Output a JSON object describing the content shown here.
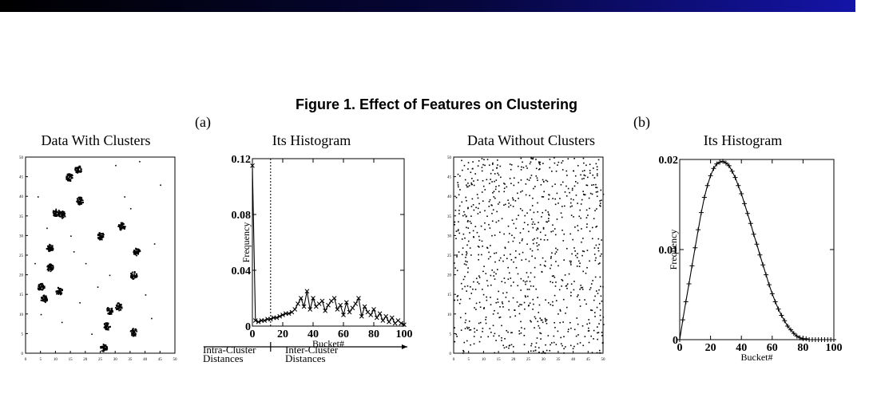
{
  "figure": {
    "title": "Figure 1. Effect of Features on Clustering",
    "label_a": "(a)",
    "label_b": "(b)",
    "accent_colors": [
      "#000000",
      "#1414a8"
    ]
  },
  "chart_data": [
    {
      "id": "scatter_clusters",
      "type": "scatter",
      "title": "Data With Clusters",
      "xlim": [
        0,
        50
      ],
      "ylim": [
        0,
        50
      ],
      "xticks": [
        0,
        5,
        10,
        15,
        20,
        25,
        30,
        35,
        40,
        45,
        50
      ],
      "yticks": [
        0,
        5,
        10,
        15,
        20,
        25,
        30,
        35,
        40,
        45,
        50
      ],
      "cluster_centers": [
        [
          17.5,
          47
        ],
        [
          14.5,
          45
        ],
        [
          18,
          39
        ],
        [
          10,
          36
        ],
        [
          12,
          35.5
        ],
        [
          25,
          30
        ],
        [
          32,
          32.5
        ],
        [
          8,
          27
        ],
        [
          37,
          26
        ],
        [
          8,
          22
        ],
        [
          36,
          20
        ],
        [
          5,
          17
        ],
        [
          6,
          14
        ],
        [
          11,
          16
        ],
        [
          31,
          12
        ],
        [
          28,
          11
        ],
        [
          27,
          7
        ],
        [
          36,
          5.5
        ],
        [
          26,
          1.5
        ]
      ],
      "scatter_points": [
        [
          4,
          40
        ],
        [
          7,
          32
        ],
        [
          3,
          23
        ],
        [
          5,
          10
        ],
        [
          12,
          8
        ],
        [
          18,
          13
        ],
        [
          22,
          5
        ],
        [
          40,
          15
        ],
        [
          45,
          43
        ],
        [
          43,
          28
        ],
        [
          42,
          9
        ],
        [
          20,
          23
        ],
        [
          28,
          20
        ],
        [
          15,
          30
        ],
        [
          35,
          37
        ],
        [
          30,
          48
        ],
        [
          38,
          49
        ],
        [
          16,
          26
        ],
        [
          24,
          17
        ],
        [
          33,
          40
        ]
      ]
    },
    {
      "id": "hist_clusters",
      "type": "line",
      "title": "Its Histogram",
      "xlabel": "Bucket#",
      "ylabel": "Frequency",
      "xlim": [
        0,
        100
      ],
      "ylim": [
        0,
        0.12
      ],
      "xticks": [
        "0",
        "20",
        "40",
        "60",
        "80",
        "100"
      ],
      "yticks": [
        "0",
        "0.04",
        "0.08",
        "0.12"
      ],
      "threshold_x": 12,
      "annotations": [
        "Intra-Cluster",
        "Distances",
        "Inter-Cluster",
        "Distances"
      ],
      "x": [
        0,
        2,
        4,
        6,
        8,
        10,
        12,
        14,
        16,
        18,
        20,
        22,
        24,
        26,
        28,
        30,
        32,
        34,
        36,
        38,
        40,
        42,
        44,
        46,
        48,
        50,
        52,
        54,
        56,
        58,
        60,
        62,
        64,
        66,
        68,
        70,
        72,
        74,
        76,
        78,
        80,
        82,
        84,
        86,
        88,
        90,
        92,
        94,
        96,
        98,
        100
      ],
      "y": [
        0.115,
        0.004,
        0.003,
        0.004,
        0.004,
        0.005,
        0.005,
        0.006,
        0.006,
        0.007,
        0.008,
        0.009,
        0.009,
        0.01,
        0.012,
        0.016,
        0.02,
        0.014,
        0.025,
        0.012,
        0.02,
        0.014,
        0.016,
        0.018,
        0.011,
        0.015,
        0.018,
        0.02,
        0.012,
        0.015,
        0.008,
        0.017,
        0.01,
        0.013,
        0.016,
        0.02,
        0.007,
        0.014,
        0.01,
        0.008,
        0.012,
        0.006,
        0.009,
        0.004,
        0.007,
        0.003,
        0.006,
        0.002,
        0.004,
        0.002,
        0.001
      ]
    },
    {
      "id": "scatter_uniform",
      "type": "scatter",
      "title": "Data Without Clusters",
      "xlim": [
        0,
        50
      ],
      "ylim": [
        0,
        50
      ],
      "xticks": [
        0,
        5,
        10,
        15,
        20,
        25,
        30,
        35,
        40,
        45,
        50
      ],
      "yticks": [
        0,
        5,
        10,
        15,
        20,
        25,
        30,
        35,
        40,
        45,
        50
      ],
      "n_points": 900
    },
    {
      "id": "hist_uniform",
      "type": "line",
      "title": "Its Histogram",
      "xlabel": "Bucket#",
      "ylabel": "Frequency",
      "xlim": [
        0,
        100
      ],
      "ylim": [
        0,
        0.02
      ],
      "xticks": [
        "0",
        "20",
        "40",
        "60",
        "80",
        "100"
      ],
      "yticks": [
        "0",
        "0.01",
        "0.02"
      ],
      "x": [
        0,
        2,
        4,
        6,
        8,
        10,
        12,
        14,
        16,
        18,
        20,
        22,
        24,
        26,
        28,
        30,
        32,
        34,
        36,
        38,
        40,
        42,
        44,
        46,
        48,
        50,
        52,
        54,
        56,
        58,
        60,
        62,
        64,
        66,
        68,
        70,
        72,
        74,
        76,
        78,
        80,
        82,
        84,
        86,
        88,
        90,
        92,
        94,
        96,
        98,
        100
      ],
      "y": [
        0.0,
        0.0022,
        0.0042,
        0.0062,
        0.0082,
        0.0102,
        0.0122,
        0.0141,
        0.0158,
        0.0171,
        0.0182,
        0.019,
        0.0195,
        0.0197,
        0.0198,
        0.0196,
        0.0193,
        0.0187,
        0.018,
        0.0171,
        0.0162,
        0.0151,
        0.014,
        0.0129,
        0.0117,
        0.0106,
        0.0094,
        0.0083,
        0.0072,
        0.0061,
        0.0051,
        0.0042,
        0.0034,
        0.0027,
        0.0021,
        0.0015,
        0.0011,
        0.0007,
        0.0004,
        0.0002,
        0.0001,
        0.0001,
        0.0,
        0.0,
        0.0,
        0.0,
        0.0,
        0.0,
        0.0,
        0.0,
        0.0
      ]
    }
  ]
}
